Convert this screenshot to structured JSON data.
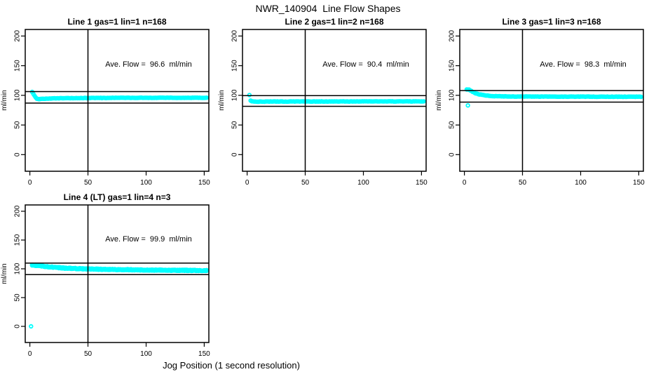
{
  "figure": {
    "title": "NWR_140904  Line Flow Shapes",
    "xlabel": "Jog Position (1 second resolution)",
    "background": "#FFFFFF",
    "point_color": "#00FFFF",
    "axis_color": "#000000"
  },
  "chart_data": [
    {
      "type": "scatter",
      "title": "Line 1 gas=1 lin=1 n=168",
      "annotation": "Ave. Flow =  96.6  ml/min",
      "ave_flow_ml_min": 96.6,
      "n": 168,
      "ylabel": "ml/min",
      "x_ticks": [
        0,
        50,
        100,
        150
      ],
      "y_ticks": [
        0,
        50,
        100,
        150,
        200
      ],
      "xlim": [
        -4,
        154
      ],
      "ylim": [
        -28,
        211
      ],
      "vline_x": 50,
      "hlines": [
        106.3,
        86.9
      ],
      "x_range": [
        2,
        152
      ],
      "noise": 0.3,
      "passes": 1,
      "profile": [
        [
          2,
          105.5
        ],
        [
          3,
          102.5
        ],
        [
          4,
          99.0
        ],
        [
          5,
          96.5
        ],
        [
          6,
          94.5
        ],
        [
          8,
          93.6
        ],
        [
          12,
          94.2
        ],
        [
          20,
          94.9
        ],
        [
          40,
          95.4
        ],
        [
          80,
          95.8
        ],
        [
          152,
          95.9
        ]
      ],
      "outliers": []
    },
    {
      "type": "scatter",
      "title": "Line 2 gas=1 lin=2 n=168",
      "annotation": "Ave. Flow =  90.4  ml/min",
      "ave_flow_ml_min": 90.4,
      "n": 168,
      "ylabel": "ml/min",
      "x_ticks": [
        0,
        50,
        100,
        150
      ],
      "y_ticks": [
        0,
        50,
        100,
        150,
        200
      ],
      "xlim": [
        -4,
        154
      ],
      "ylim": [
        -28,
        211
      ],
      "vline_x": 50,
      "hlines": [
        99.4,
        81.4
      ],
      "x_range": [
        2,
        152
      ],
      "noise": 0.3,
      "passes": 1,
      "profile": [
        [
          2,
          100.5
        ],
        [
          3,
          91.5
        ],
        [
          4,
          90.0
        ],
        [
          6,
          89.4
        ],
        [
          10,
          89.3
        ],
        [
          40,
          89.6
        ],
        [
          152,
          89.8
        ]
      ],
      "outliers": []
    },
    {
      "type": "scatter",
      "title": "Line 3 gas=1 lin=3 n=168",
      "annotation": "Ave. Flow =  98.3  ml/min",
      "ave_flow_ml_min": 98.3,
      "n": 168,
      "ylabel": "ml/min",
      "x_ticks": [
        0,
        50,
        100,
        150
      ],
      "y_ticks": [
        0,
        50,
        100,
        150,
        200
      ],
      "xlim": [
        -4,
        154
      ],
      "ylim": [
        -28,
        211
      ],
      "vline_x": 50,
      "hlines": [
        108.1,
        88.5
      ],
      "x_range": [
        2,
        152
      ],
      "noise": 0.3,
      "passes": 1,
      "profile": [
        [
          2,
          110.0
        ],
        [
          4,
          110.0
        ],
        [
          5,
          108.5
        ],
        [
          7,
          106.0
        ],
        [
          9,
          104.0
        ],
        [
          12,
          102.0
        ],
        [
          15,
          100.8
        ],
        [
          18,
          99.8
        ],
        [
          22,
          99.0
        ],
        [
          28,
          98.4
        ],
        [
          40,
          98.0
        ],
        [
          80,
          97.8
        ],
        [
          152,
          97.6
        ]
      ],
      "outliers": [
        [
          3,
          83
        ]
      ]
    },
    {
      "type": "scatter",
      "title": "Line 4 (LT) gas=1 lin=4 n=3",
      "annotation": "Ave. Flow =  99.9  ml/min",
      "ave_flow_ml_min": 99.9,
      "n": 3,
      "ylabel": "ml/min",
      "x_ticks": [
        0,
        50,
        100,
        150
      ],
      "y_ticks": [
        0,
        50,
        100,
        150,
        200
      ],
      "xlim": [
        -4,
        154
      ],
      "ylim": [
        -28,
        211
      ],
      "vline_x": 50,
      "hlines": [
        109.9,
        89.9
      ],
      "x_range": [
        2,
        152
      ],
      "noise": 0.9,
      "passes": 3,
      "profile": [
        [
          2,
          106.5
        ],
        [
          5,
          106.0
        ],
        [
          10,
          104.8
        ],
        [
          15,
          103.8
        ],
        [
          20,
          102.8
        ],
        [
          25,
          102.0
        ],
        [
          30,
          101.3
        ],
        [
          40,
          100.4
        ],
        [
          50,
          99.8
        ],
        [
          60,
          99.3
        ],
        [
          70,
          98.9
        ],
        [
          80,
          98.6
        ],
        [
          90,
          98.3
        ],
        [
          100,
          98.0
        ],
        [
          110,
          97.8
        ],
        [
          120,
          97.6
        ],
        [
          135,
          97.3
        ],
        [
          152,
          97.0
        ]
      ],
      "outliers": [
        [
          1,
          0
        ]
      ]
    }
  ]
}
